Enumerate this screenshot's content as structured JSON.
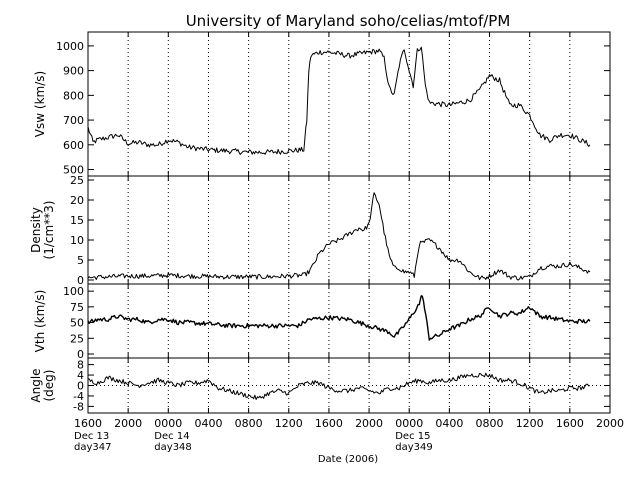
{
  "chart_data": {
    "type": "line",
    "title": "University of Maryland  soho/celias/mtof/PM",
    "xlabel": "Date (2006)",
    "x_unit": "hours since 2006-12-13 16:00 UT",
    "xlim": [
      0,
      52
    ],
    "x_tick_labels": [
      "1600",
      "2000",
      "0000",
      "0400",
      "0800",
      "1200",
      "1600",
      "2000",
      "0000",
      "0400",
      "0800",
      "1200",
      "1600",
      "2000"
    ],
    "day_labels": [
      {
        "date": "Dec 13",
        "doy": "day347",
        "x": 0
      },
      {
        "date": "Dec 14",
        "doy": "day348",
        "x": 8
      },
      {
        "date": "Dec 15",
        "doy": "day349",
        "x": 32
      }
    ],
    "panels": [
      {
        "name": "vsw",
        "ylabel": [
          "Vsw (km/s)"
        ],
        "ylim": [
          490,
          1040
        ],
        "yticks": [
          500,
          600,
          700,
          800,
          900,
          1000
        ],
        "ref_line": null,
        "noise": 22,
        "stroke": 1,
        "x": [
          0,
          0.5,
          1,
          2,
          3,
          4,
          5,
          6,
          7,
          8,
          9,
          10,
          11,
          12,
          14,
          16,
          18,
          20,
          21.5,
          21.8,
          22,
          22.2,
          23,
          24,
          26,
          28,
          29,
          29.5,
          30,
          30.5,
          31,
          31.5,
          32,
          32.4,
          32.8,
          33.2,
          33.6,
          34,
          36,
          38,
          39,
          40,
          41,
          42,
          43,
          44,
          45,
          46,
          47,
          48,
          49,
          50
        ],
        "y": [
          670,
          610,
          620,
          630,
          640,
          605,
          610,
          600,
          600,
          620,
          610,
          590,
          585,
          580,
          575,
          570,
          570,
          575,
          580,
          700,
          900,
          960,
          975,
          975,
          960,
          975,
          980,
          950,
          830,
          800,
          920,
          990,
          900,
          840,
          980,
          1000,
          840,
          770,
          760,
          780,
          820,
          880,
          860,
          760,
          760,
          720,
          640,
          620,
          640,
          640,
          620,
          600
        ]
      },
      {
        "name": "density",
        "ylabel": [
          "Density",
          "(1/cm**3)"
        ],
        "ylim": [
          0,
          25
        ],
        "yticks": [
          0,
          5,
          10,
          15,
          20,
          25
        ],
        "ref_line": null,
        "noise": 1.2,
        "stroke": 1,
        "x": [
          0,
          2,
          4,
          6,
          8,
          10,
          12,
          14,
          16,
          18,
          20,
          21.5,
          22,
          22.5,
          23,
          24,
          25,
          26,
          27,
          27.5,
          28,
          28.5,
          29,
          29.5,
          30,
          30.5,
          31,
          31.5,
          32,
          32.5,
          33,
          34,
          35,
          36,
          37,
          38,
          39,
          39.5,
          40,
          41,
          42,
          43,
          44,
          45,
          46,
          47,
          48,
          49,
          50
        ],
        "y": [
          0.6,
          0.8,
          1.0,
          1.0,
          1.2,
          1.0,
          0.9,
          0.8,
          0.8,
          0.8,
          1.0,
          1.2,
          2.0,
          4.0,
          6.5,
          9.0,
          10.0,
          11.5,
          13.0,
          12.5,
          14.0,
          21.5,
          19.0,
          12.0,
          6.0,
          3.0,
          3.0,
          2.0,
          2.0,
          1.0,
          9.0,
          10.0,
          8.0,
          5.0,
          5.0,
          2.0,
          0.5,
          0.5,
          1.0,
          2.5,
          0.8,
          0.5,
          0.8,
          3.0,
          3.5,
          3.5,
          4.0,
          3.0,
          2.0
        ]
      },
      {
        "name": "vth",
        "ylabel": [
          "Vth (km/s)"
        ],
        "ylim": [
          0,
          105
        ],
        "yticks": [
          0,
          25,
          50,
          75,
          100
        ],
        "ref_line": null,
        "noise": 7,
        "stroke": 1.4,
        "x": [
          0,
          1,
          2,
          3,
          4,
          5,
          6,
          7,
          8,
          9,
          10,
          12,
          14,
          16,
          18,
          20,
          21,
          22,
          24,
          26,
          27,
          28,
          29,
          30,
          30.5,
          31,
          32,
          33,
          33.3,
          34,
          35,
          36,
          37,
          38,
          39,
          40,
          41,
          42,
          43,
          44,
          45,
          46,
          47,
          48,
          49,
          50
        ],
        "y": [
          50,
          55,
          55,
          60,
          55,
          55,
          50,
          55,
          55,
          50,
          50,
          48,
          45,
          45,
          45,
          45,
          45,
          55,
          58,
          55,
          50,
          45,
          40,
          35,
          28,
          35,
          55,
          80,
          95,
          25,
          30,
          40,
          45,
          55,
          60,
          75,
          60,
          65,
          65,
          75,
          60,
          58,
          55,
          52,
          52,
          52
        ]
      },
      {
        "name": "angle",
        "ylabel": [
          "Angle",
          "(deg)"
        ],
        "ylim": [
          -9,
          9
        ],
        "yticks": [
          -8,
          -4,
          0,
          4,
          8
        ],
        "ref_line": 0,
        "noise": 1.8,
        "stroke": 1,
        "x": [
          0,
          1,
          2,
          3,
          4,
          5,
          6,
          7,
          8,
          9,
          10,
          11,
          12,
          13,
          14,
          15,
          16,
          17,
          18,
          19,
          20,
          21,
          22,
          23,
          24,
          25,
          26,
          27,
          28,
          29,
          30,
          31,
          32,
          33,
          34,
          35,
          36,
          37,
          38,
          39,
          40,
          41,
          42,
          43,
          44,
          45,
          46,
          47,
          48,
          49,
          50
        ],
        "y": [
          2,
          1,
          3,
          2,
          1,
          0,
          1,
          2,
          1,
          0,
          1,
          1,
          2,
          -1,
          -2,
          -3,
          -4,
          -5,
          -3,
          -2,
          -3,
          0,
          1,
          1,
          -1,
          -2,
          -2,
          -1,
          -2,
          -3,
          -1,
          -1,
          1,
          2,
          1,
          2,
          2,
          3,
          4,
          4,
          4,
          2,
          2,
          1,
          -1,
          -3,
          -2,
          -2,
          -1,
          -1,
          0
        ]
      }
    ]
  }
}
